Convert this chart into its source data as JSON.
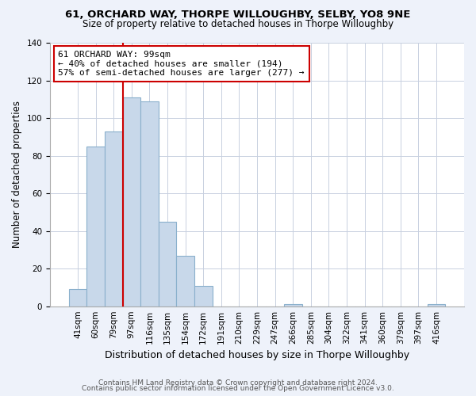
{
  "title_line1": "61, ORCHARD WAY, THORPE WILLOUGHBY, SELBY, YO8 9NE",
  "title_line2": "Size of property relative to detached houses in Thorpe Willoughby",
  "xlabel": "Distribution of detached houses by size in Thorpe Willoughby",
  "ylabel": "Number of detached properties",
  "bin_labels": [
    "41sqm",
    "60sqm",
    "79sqm",
    "97sqm",
    "116sqm",
    "135sqm",
    "154sqm",
    "172sqm",
    "191sqm",
    "210sqm",
    "229sqm",
    "247sqm",
    "266sqm",
    "285sqm",
    "304sqm",
    "322sqm",
    "341sqm",
    "360sqm",
    "379sqm",
    "397sqm",
    "416sqm"
  ],
  "bar_heights": [
    9,
    85,
    93,
    111,
    109,
    45,
    27,
    11,
    0,
    0,
    0,
    0,
    1,
    0,
    0,
    0,
    0,
    0,
    0,
    0,
    1
  ],
  "bar_color": "#c8d8ea",
  "bar_edgecolor": "#8ab0cc",
  "ylim": [
    0,
    140
  ],
  "yticks": [
    0,
    20,
    40,
    60,
    80,
    100,
    120,
    140
  ],
  "vline_x_index": 3,
  "vline_color": "#cc0000",
  "annotation_text": "61 ORCHARD WAY: 99sqm\n← 40% of detached houses are smaller (194)\n57% of semi-detached houses are larger (277) →",
  "annotation_box_edgecolor": "#cc0000",
  "annotation_box_facecolor": "#ffffff",
  "footnote1": "Contains HM Land Registry data © Crown copyright and database right 2024.",
  "footnote2": "Contains public sector information licensed under the Open Government Licence v3.0.",
  "background_color": "#eef2fa",
  "plot_bg_color": "#ffffff",
  "grid_color": "#c8d0e0",
  "title_fontsize": 9.5,
  "subtitle_fontsize": 8.5,
  "xlabel_fontsize": 9,
  "ylabel_fontsize": 8.5,
  "tick_fontsize": 7.5,
  "annotation_fontsize": 8,
  "footnote_fontsize": 6.5
}
